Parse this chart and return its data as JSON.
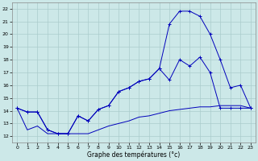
{
  "xlabel": "Graphe des températures (°c)",
  "bg_color": "#cce8e8",
  "line_color": "#0000bb",
  "grid_color": "#aacccc",
  "xlim": [
    -0.5,
    23.5
  ],
  "ylim": [
    11.5,
    22.5
  ],
  "yticks": [
    12,
    13,
    14,
    15,
    16,
    17,
    18,
    19,
    20,
    21,
    22
  ],
  "xticks": [
    0,
    1,
    2,
    3,
    4,
    5,
    6,
    7,
    8,
    9,
    10,
    11,
    12,
    13,
    14,
    15,
    16,
    17,
    18,
    19,
    20,
    21,
    22,
    23
  ],
  "line1_x": [
    0,
    1,
    2,
    3,
    4,
    5,
    6,
    7,
    8,
    9,
    10,
    11,
    12,
    13,
    14,
    15,
    16,
    17,
    18,
    19,
    20,
    21,
    22,
    23
  ],
  "line1_y": [
    14.2,
    13.9,
    13.9,
    12.5,
    12.2,
    12.2,
    13.6,
    13.2,
    14.1,
    14.4,
    15.5,
    15.8,
    16.3,
    16.5,
    17.3,
    16.4,
    18.0,
    17.5,
    18.2,
    17.0,
    14.2,
    14.2,
    14.2,
    14.2
  ],
  "line2_x": [
    0,
    1,
    2,
    3,
    4,
    5,
    6,
    7,
    8,
    9,
    10,
    11,
    12,
    13,
    14,
    15,
    16,
    17,
    18,
    19,
    20,
    21,
    22,
    23
  ],
  "line2_y": [
    14.2,
    13.9,
    13.9,
    12.5,
    12.2,
    12.2,
    13.6,
    13.2,
    14.1,
    14.4,
    15.5,
    15.8,
    16.3,
    16.5,
    17.3,
    20.8,
    21.8,
    21.8,
    21.4,
    20.0,
    18.0,
    15.8,
    16.0,
    14.2
  ],
  "line3_x": [
    0,
    1,
    2,
    3,
    4,
    5,
    6,
    7,
    8,
    9,
    10,
    11,
    12,
    13,
    14,
    15,
    16,
    17,
    18,
    19,
    20,
    21,
    22,
    23
  ],
  "line3_y": [
    14.2,
    12.5,
    12.8,
    12.2,
    12.2,
    12.2,
    12.2,
    12.2,
    12.5,
    12.8,
    13.0,
    13.2,
    13.5,
    13.6,
    13.8,
    14.0,
    14.1,
    14.2,
    14.3,
    14.3,
    14.4,
    14.4,
    14.4,
    14.2
  ]
}
